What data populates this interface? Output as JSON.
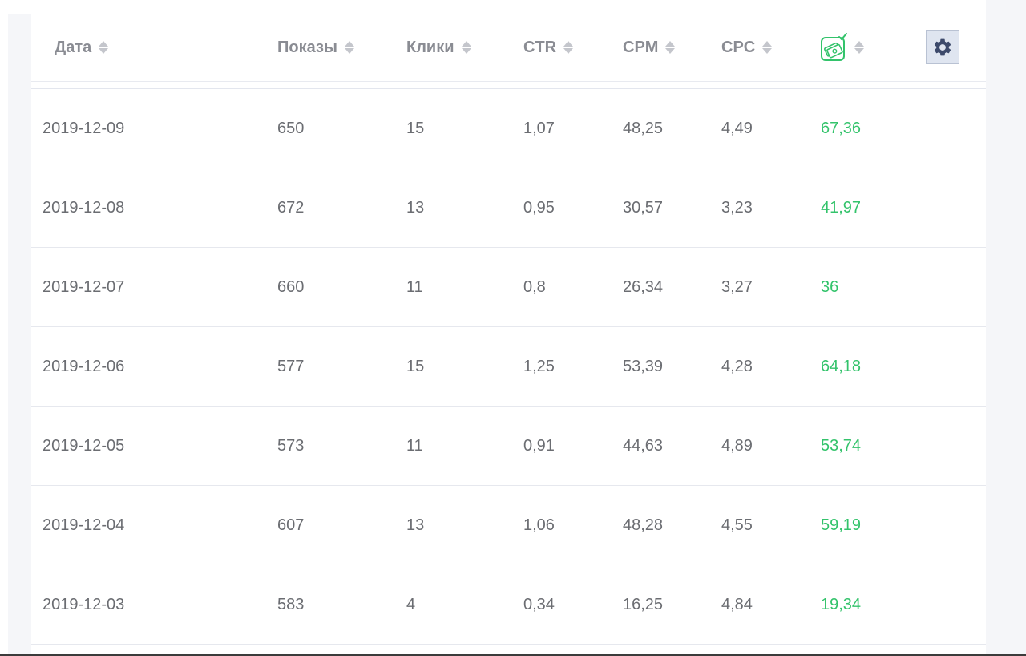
{
  "table": {
    "headers": [
      {
        "key": "date",
        "label": "Дата"
      },
      {
        "key": "impressions",
        "label": "Показы"
      },
      {
        "key": "clicks",
        "label": "Клики"
      },
      {
        "key": "ctr",
        "label": "CTR"
      },
      {
        "key": "cpm",
        "label": "CPM"
      },
      {
        "key": "cpc",
        "label": "CPC"
      }
    ],
    "spend_header_icon": "money-check-icon",
    "settings_icon": "gear-icon",
    "accent_color": "#33c36b",
    "rows": [
      {
        "date": "2019-12-09",
        "impressions": "650",
        "clicks": "15",
        "ctr": "1,07",
        "cpm": "48,25",
        "cpc": "4,49",
        "spend": "67,36"
      },
      {
        "date": "2019-12-08",
        "impressions": "672",
        "clicks": "13",
        "ctr": "0,95",
        "cpm": "30,57",
        "cpc": "3,23",
        "spend": "41,97"
      },
      {
        "date": "2019-12-07",
        "impressions": "660",
        "clicks": "11",
        "ctr": "0,8",
        "cpm": "26,34",
        "cpc": "3,27",
        "spend": "36"
      },
      {
        "date": "2019-12-06",
        "impressions": "577",
        "clicks": "15",
        "ctr": "1,25",
        "cpm": "53,39",
        "cpc": "4,28",
        "spend": "64,18"
      },
      {
        "date": "2019-12-05",
        "impressions": "573",
        "clicks": "11",
        "ctr": "0,91",
        "cpm": "44,63",
        "cpc": "4,89",
        "spend": "53,74"
      },
      {
        "date": "2019-12-04",
        "impressions": "607",
        "clicks": "13",
        "ctr": "1,06",
        "cpm": "48,28",
        "cpc": "4,55",
        "spend": "59,19"
      },
      {
        "date": "2019-12-03",
        "impressions": "583",
        "clicks": "4",
        "ctr": "0,34",
        "cpm": "16,25",
        "cpc": "4,84",
        "spend": "19,34"
      }
    ]
  }
}
